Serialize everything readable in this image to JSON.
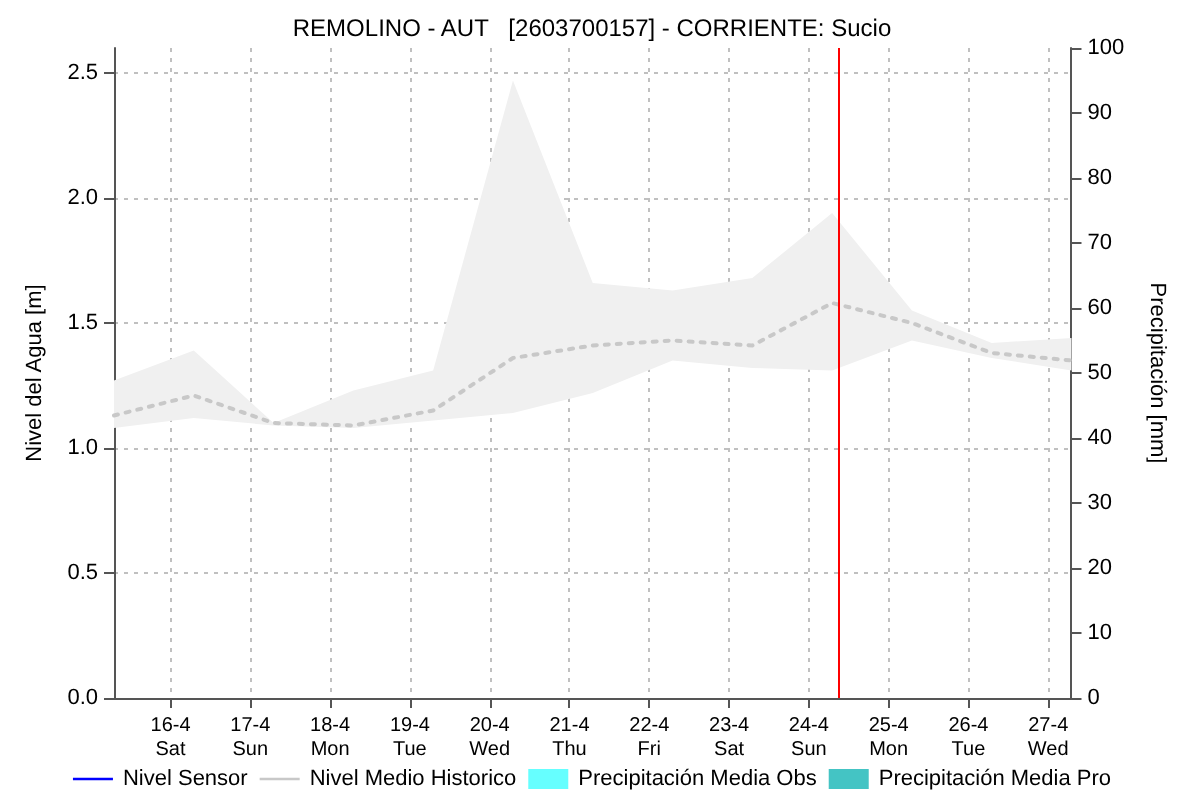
{
  "chart_data": {
    "type": "line",
    "title": "REMOLINO - AUT   [2603700157] - CORRIENTE: Sucio",
    "ylabel": "Nivel del Agua [m]",
    "y2label": "Precipitación [mm]",
    "x": [
      "--04-15T07:00",
      "--04-16T07:00",
      "--04-17T07:00",
      "--04-18T07:00",
      "--04-19T07:00",
      "--04-20T07:00",
      "--04-21T07:00",
      "--04-22T07:00",
      "--04-23T07:00",
      "--04-24T07:00",
      "--04-25T07:00",
      "--04-26T07:00",
      "--04-27T07:00"
    ],
    "series": [
      {
        "name": "Nivel Sensor",
        "color": "#0000ff",
        "line_style": "solid",
        "values": [
          null,
          null,
          null,
          null,
          null,
          null,
          null,
          null,
          null,
          null,
          null,
          null,
          null
        ]
      },
      {
        "name": "Nivel Medio Historico",
        "color": "#c8c8c8",
        "line_style": "dotted",
        "values": [
          1.13,
          1.21,
          1.1,
          1.09,
          1.15,
          1.36,
          1.41,
          1.43,
          1.41,
          1.58,
          1.5,
          1.38,
          1.35
        ],
        "lower": [
          1.08,
          1.12,
          1.09,
          1.08,
          1.11,
          1.14,
          1.22,
          1.35,
          1.32,
          1.31,
          1.43,
          1.36,
          1.31
        ],
        "upper": [
          1.27,
          1.39,
          1.1,
          1.23,
          1.31,
          2.47,
          1.66,
          1.63,
          1.68,
          1.94,
          1.55,
          1.42,
          1.44
        ]
      },
      {
        "name": "Precipitación Media Obs",
        "color": "#66ffff",
        "type": "bar",
        "values": [
          null,
          null,
          null,
          null,
          null,
          null,
          null,
          null,
          null,
          null,
          null,
          null,
          null
        ]
      },
      {
        "name": "Precipitación Media Pro",
        "color": "#44c4c4",
        "type": "bar",
        "values": [
          null,
          null,
          null,
          null,
          null,
          null,
          null,
          null,
          null,
          null,
          null,
          null,
          null
        ]
      }
    ],
    "xlim": [
      "--04-15T07:00",
      "--04-27T07:00"
    ],
    "xticks": [
      {
        "value": "--04-16",
        "label": "16-4\nSat"
      },
      {
        "value": "--04-17",
        "label": "17-4\nSun"
      },
      {
        "value": "--04-18",
        "label": "18-4\nMon"
      },
      {
        "value": "--04-19",
        "label": "19-4\nTue"
      },
      {
        "value": "--04-20",
        "label": "20-4\nWed"
      },
      {
        "value": "--04-21",
        "label": "21-4\nThu"
      },
      {
        "value": "--04-22",
        "label": "22-4\nFri"
      },
      {
        "value": "--04-23",
        "label": "23-4\nSat"
      },
      {
        "value": "--04-24",
        "label": "24-4\nSun"
      },
      {
        "value": "--04-25",
        "label": "25-4\nMon"
      },
      {
        "value": "--04-26",
        "label": "26-4\nTue"
      },
      {
        "value": "--04-27",
        "label": "27-4\nWed"
      }
    ],
    "ylim": [
      0,
      2.6
    ],
    "yticks": [
      {
        "value": 0,
        "label": "0.0"
      },
      {
        "value": 0.5,
        "label": "0.5"
      },
      {
        "value": 1,
        "label": "1.0"
      },
      {
        "value": 1.5,
        "label": "1.5"
      },
      {
        "value": 2,
        "label": "2.0"
      },
      {
        "value": 2.5,
        "label": "2.5"
      }
    ],
    "y2lim": [
      0,
      100
    ],
    "y2ticks": [
      0,
      10,
      20,
      30,
      40,
      50,
      60,
      70,
      80,
      90,
      100
    ],
    "ref_lines": [
      {
        "axis": "x",
        "value": "--04-24T09:00",
        "color": "#ff0000",
        "line_style": "solid"
      }
    ],
    "grid": true,
    "legend": "bottom",
    "marker": "none"
  }
}
